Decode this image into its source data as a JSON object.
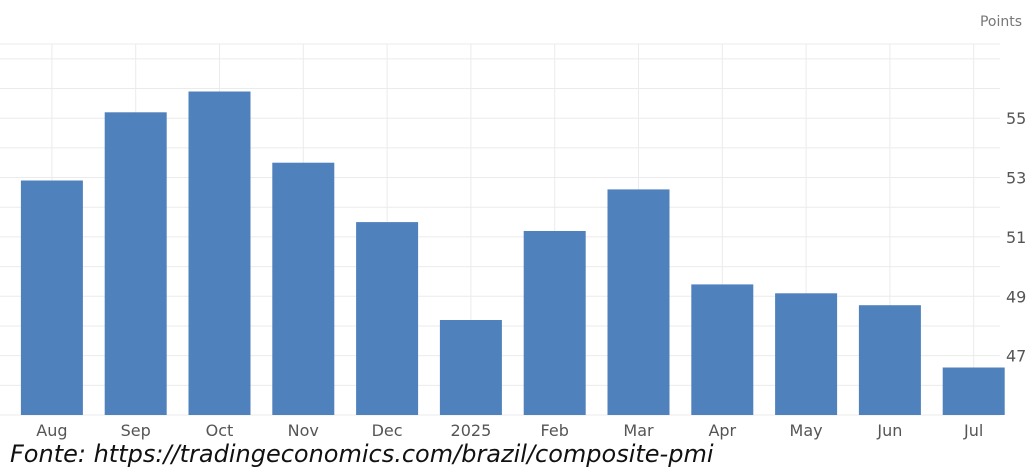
{
  "unit_label": "Points",
  "source_note": "Fonte: https://tradingeconomics.com/brazil/composite-pmi",
  "colors": {
    "bar": "#4f81bd",
    "grid": "#ebebeb",
    "axis_text": "#555555"
  },
  "chart_data": {
    "type": "bar",
    "categories": [
      "Aug",
      "Sep",
      "Oct",
      "Nov",
      "Dec",
      "2025",
      "Feb",
      "Mar",
      "Apr",
      "May",
      "Jun",
      "Jul"
    ],
    "values": [
      52.9,
      55.2,
      55.9,
      53.5,
      51.5,
      48.2,
      51.2,
      52.6,
      49.4,
      49.1,
      48.7,
      46.6
    ],
    "y_ticks": [
      "55",
      "53",
      "51",
      "49",
      "47"
    ],
    "ylim": [
      45.0,
      57.5
    ],
    "grid": true,
    "y_axis_side": "right",
    "title": "",
    "xlabel": "",
    "ylabel": ""
  }
}
